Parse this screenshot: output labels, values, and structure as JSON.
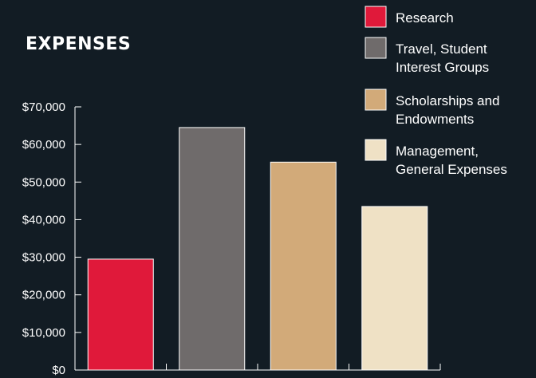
{
  "chart_data": {
    "type": "bar",
    "title": "EXPENSES",
    "xlabel": "",
    "ylabel": "",
    "ylim": [
      0,
      70000
    ],
    "yticks": [
      0,
      10000,
      20000,
      30000,
      40000,
      50000,
      60000,
      70000
    ],
    "ytick_labels": [
      "$0",
      "$10,000",
      "$20,000",
      "$30,000",
      "$40,000",
      "$50,000",
      "$60,000",
      "$70,000"
    ],
    "categories": [
      "Research",
      "Travel, Student Interest Groups",
      "Scholarships and Endowments",
      "Management, General Expenses"
    ],
    "values": [
      29500,
      64500,
      55300,
      43500
    ],
    "colors": [
      "#e0193a",
      "#6f6b6b",
      "#d2aa79",
      "#efe1c5"
    ],
    "grid": false,
    "legend_position": "top-right",
    "legend": [
      {
        "lines": [
          "Research"
        ],
        "color": "#e0193a",
        "icon": "legend-swatch"
      },
      {
        "lines": [
          "Travel, Student",
          "Interest Groups"
        ],
        "color": "#6f6b6b",
        "icon": "legend-swatch"
      },
      {
        "lines": [
          "Scholarships and",
          "Endowments"
        ],
        "color": "#d2aa79",
        "icon": "legend-swatch"
      },
      {
        "lines": [
          "Management,",
          "General Expenses"
        ],
        "color": "#efe1c5",
        "icon": "legend-swatch"
      }
    ]
  }
}
